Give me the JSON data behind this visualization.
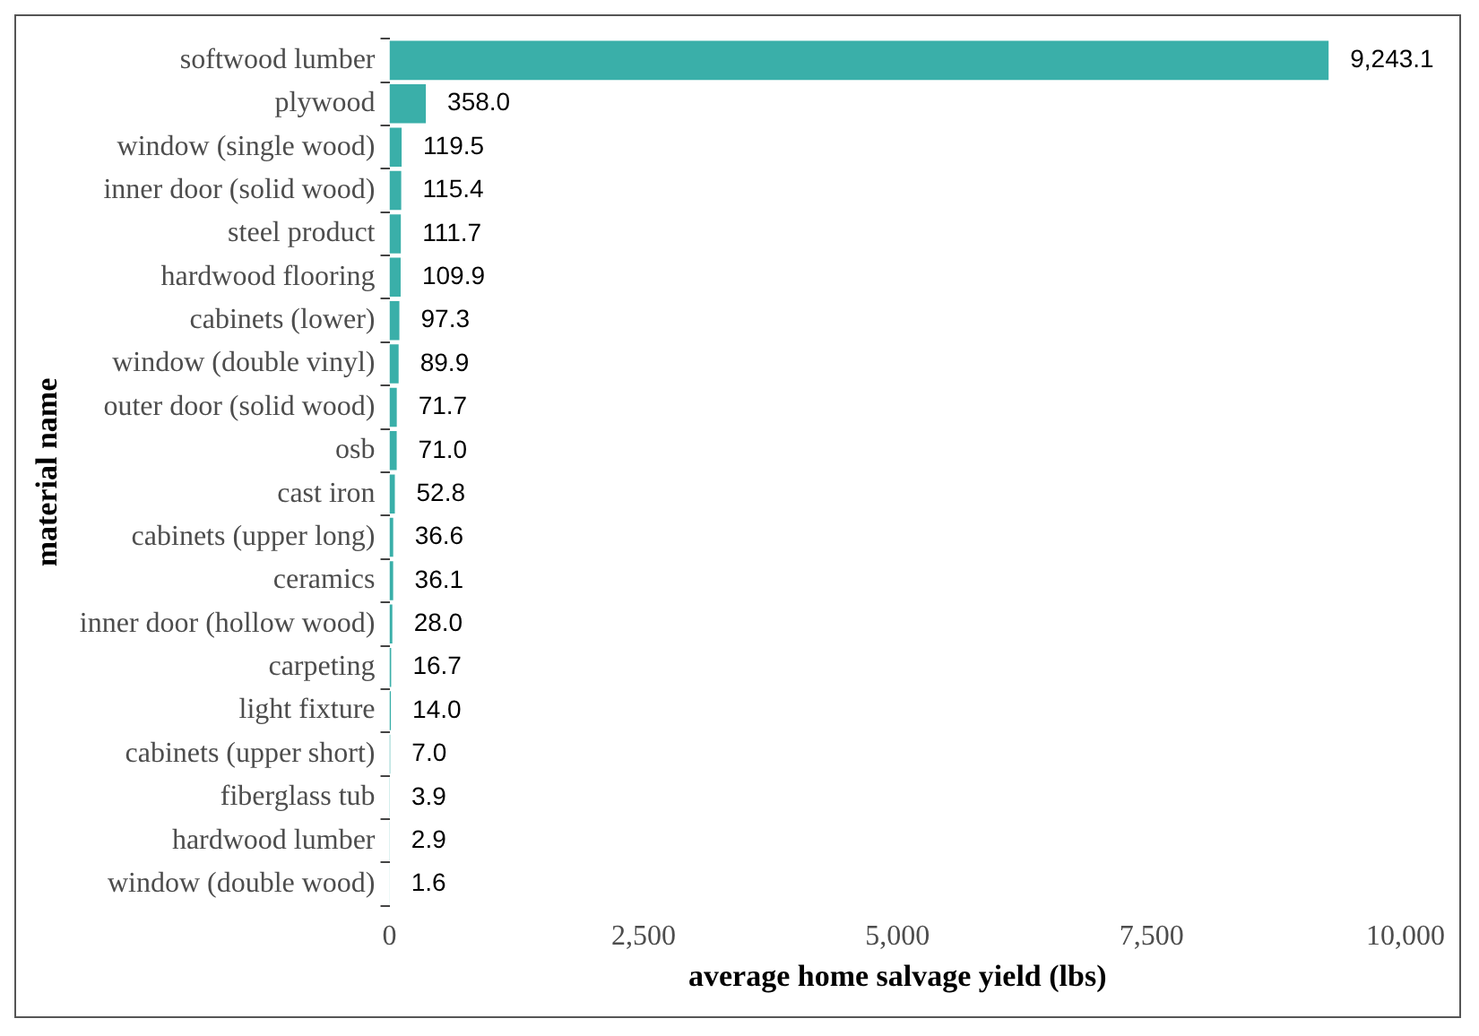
{
  "chart_data": {
    "type": "bar",
    "orientation": "horizontal",
    "xlabel": "average home salvage yield (lbs)",
    "ylabel": "material name",
    "categories": [
      "softwood lumber",
      "plywood",
      "window (single wood)",
      "inner door (solid wood)",
      "steel product",
      "hardwood flooring",
      "cabinets (lower)",
      "window (double vinyl)",
      "outer door (solid wood)",
      "osb",
      "cast iron",
      "cabinets (upper long)",
      "ceramics",
      "inner door (hollow wood)",
      "carpeting",
      "light fixture",
      "cabinets (upper short)",
      "fiberglass tub",
      "hardwood lumber",
      "window (double wood)"
    ],
    "values": [
      9243.1,
      358.0,
      119.5,
      115.4,
      111.7,
      109.9,
      97.3,
      89.9,
      71.7,
      71.0,
      52.8,
      36.6,
      36.1,
      28.0,
      16.7,
      14.0,
      7.0,
      3.9,
      2.9,
      1.6
    ],
    "value_labels": [
      "9,243.1",
      "358.0",
      "119.5",
      "115.4",
      "111.7",
      "109.9",
      "97.3",
      "89.9",
      "71.7",
      "71.0",
      "52.8",
      "36.6",
      "36.1",
      "28.0",
      "16.7",
      "14.0",
      "7.0",
      "3.9",
      "2.9",
      "1.6"
    ],
    "color": "#3aafa9",
    "xlim": [
      0,
      10000
    ],
    "xticks": [
      {
        "value": 0,
        "label": "0"
      },
      {
        "value": 2500,
        "label": "2,500"
      },
      {
        "value": 5000,
        "label": "5,000"
      },
      {
        "value": 7500,
        "label": "7,500"
      },
      {
        "value": 10000,
        "label": "10,000"
      }
    ],
    "grid": false,
    "legend": false
  }
}
